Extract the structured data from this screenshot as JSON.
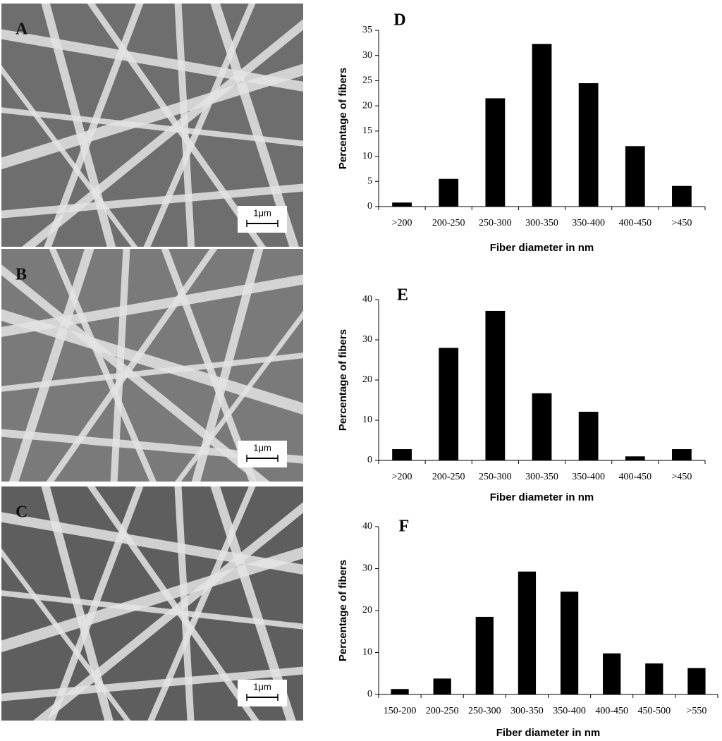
{
  "panels": [
    {
      "label": "A",
      "scale_bar": "1μm"
    },
    {
      "label": "B",
      "scale_bar": "1μm"
    },
    {
      "label": "C",
      "scale_bar": "1μm"
    }
  ],
  "chart_data": [
    {
      "type": "bar",
      "title": "D",
      "x_label": "Fiber diameter in nm",
      "y_label": "Percentage of fibers",
      "categories": [
        ">200",
        "200-250",
        "250-300",
        "300-350",
        "350-400",
        "400-450",
        ">450"
      ],
      "values": [
        0.8,
        5.5,
        21.5,
        32.3,
        24.5,
        12,
        4.1
      ],
      "color": "#000000",
      "ylim": [
        0,
        35
      ],
      "yticks": [
        0,
        5,
        10,
        15,
        20,
        25,
        30,
        35
      ]
    },
    {
      "type": "bar",
      "title": "E",
      "x_label": "Fiber diameter in nm",
      "y_label": "Percentage of fibers",
      "categories": [
        ">200",
        "200-250",
        "250-300",
        "300-350",
        "350-400",
        "400-450",
        ">450"
      ],
      "values": [
        2.8,
        28,
        37.2,
        16.7,
        12.1,
        1,
        2.8
      ],
      "color": "#000000",
      "ylim": [
        0,
        40
      ],
      "yticks": [
        0,
        10,
        20,
        30,
        40
      ]
    },
    {
      "type": "bar",
      "title": "F",
      "x_label": "Fiber diameter in nm",
      "y_label": "Percentage of fibers",
      "categories": [
        "150-200",
        "200-250",
        "250-300",
        "300-350",
        "350-400",
        "400-450",
        "450-500",
        ">550"
      ],
      "values": [
        1.3,
        3.8,
        18.5,
        29.3,
        24.5,
        9.8,
        7.4,
        6.3
      ],
      "color": "#000000",
      "ylim": [
        0,
        40
      ],
      "yticks": [
        0,
        10,
        20,
        30,
        40
      ]
    }
  ]
}
